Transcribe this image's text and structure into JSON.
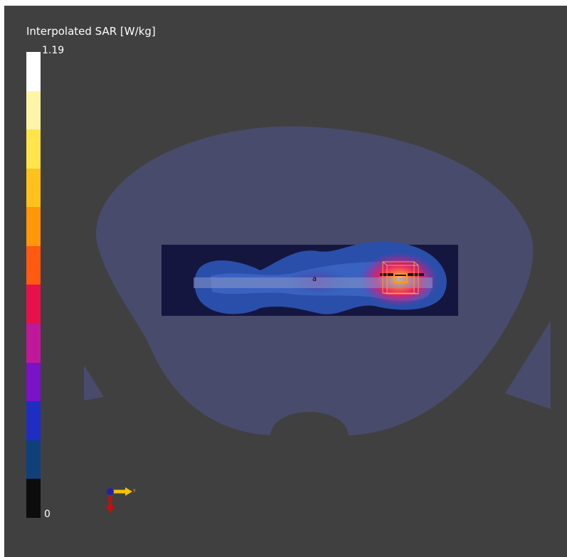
{
  "colorbar": {
    "title": "Interpolated SAR [W/kg]",
    "max_label": "1.19",
    "min_label": "0",
    "max_value": 1.19,
    "min_value": 0,
    "colors_top_to_bottom": [
      "#ffffff",
      "#fff5a8",
      "#ffe44a",
      "#ffc21a",
      "#ff9708",
      "#ff5a10",
      "#e8104a",
      "#c0189a",
      "#7a12c8",
      "#1e2ec2",
      "#10407a",
      "#0c0c0c"
    ]
  },
  "axis_triad": {
    "y_axis_label": "Y"
  },
  "scene": {
    "background_color": "#404040",
    "phantom_color": "#484b6b",
    "dipole_label": "a"
  }
}
